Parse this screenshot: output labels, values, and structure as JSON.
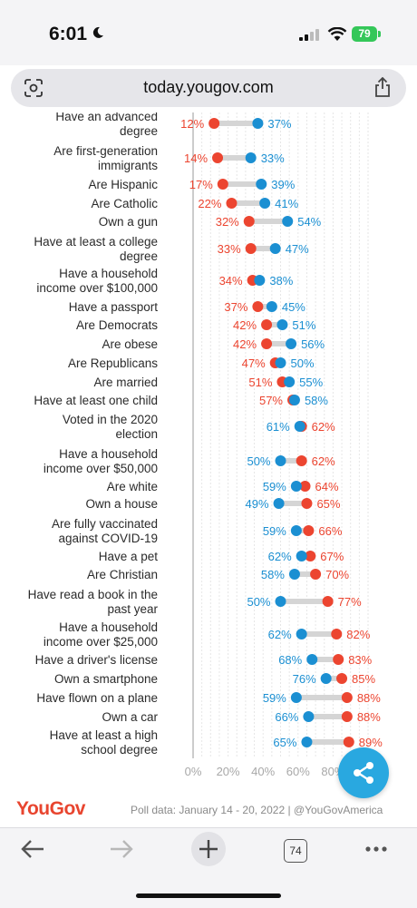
{
  "status": {
    "time": "6:01",
    "battery": "79"
  },
  "browser": {
    "url": "today.yougov.com",
    "tab_count": "74"
  },
  "chart_data": {
    "type": "dumbbell",
    "xlim": [
      0,
      100
    ],
    "xticks": [
      "0%",
      "20%",
      "40%",
      "60%",
      "80%"
    ],
    "xtick_values": [
      0,
      20,
      40,
      60,
      80
    ],
    "grid": true,
    "colors": {
      "red": "#ec4530",
      "blue": "#1b8fd2",
      "connector": "#d5d5d5"
    },
    "rows": [
      {
        "label": [
          "Have an advanced",
          "degree"
        ],
        "red": 12,
        "blue": 37
      },
      {
        "label": [
          "Are first-generation",
          "immigrants"
        ],
        "red": 14,
        "blue": 33
      },
      {
        "label": [
          "Are Hispanic"
        ],
        "red": 17,
        "blue": 39
      },
      {
        "label": [
          "Are Catholic"
        ],
        "red": 22,
        "blue": 41
      },
      {
        "label": [
          "Own a gun"
        ],
        "red": 32,
        "blue": 54
      },
      {
        "label": [
          "Have at least a college",
          "degree"
        ],
        "red": 33,
        "blue": 47
      },
      {
        "label": [
          "Have a household",
          "income over $100,000"
        ],
        "red": 34,
        "blue": 38
      },
      {
        "label": [
          "Have a passport"
        ],
        "red": 37,
        "blue": 45
      },
      {
        "label": [
          "Are Democrats"
        ],
        "red": 42,
        "blue": 51
      },
      {
        "label": [
          "Are obese"
        ],
        "red": 42,
        "blue": 56
      },
      {
        "label": [
          "Are Republicans"
        ],
        "red": 47,
        "blue": 50
      },
      {
        "label": [
          "Are married"
        ],
        "red": 51,
        "blue": 55
      },
      {
        "label": [
          "Have at least one child"
        ],
        "red": 57,
        "blue": 58
      },
      {
        "label": [
          "Voted in the 2020",
          "election"
        ],
        "red": 62,
        "blue": 61
      },
      {
        "label": [
          "Have a household",
          "income over $50,000"
        ],
        "red": 62,
        "blue": 50
      },
      {
        "label": [
          "Are white"
        ],
        "red": 64,
        "blue": 59
      },
      {
        "label": [
          "Own a house"
        ],
        "red": 65,
        "blue": 49
      },
      {
        "label": [
          "Are fully vaccinated",
          "against COVID-19"
        ],
        "red": 66,
        "blue": 59
      },
      {
        "label": [
          "Have a pet"
        ],
        "red": 67,
        "blue": 62
      },
      {
        "label": [
          "Are Christian"
        ],
        "red": 70,
        "blue": 58
      },
      {
        "label": [
          "Have read a book in the",
          "past year"
        ],
        "red": 77,
        "blue": 50
      },
      {
        "label": [
          "Have a household",
          "income over $25,000"
        ],
        "red": 82,
        "blue": 62
      },
      {
        "label": [
          "Have a driver's license"
        ],
        "red": 83,
        "blue": 68
      },
      {
        "label": [
          "Own a smartphone"
        ],
        "red": 85,
        "blue": 76
      },
      {
        "label": [
          "Have flown on a plane"
        ],
        "red": 88,
        "blue": 59
      },
      {
        "label": [
          "Own a car"
        ],
        "red": 88,
        "blue": 66
      },
      {
        "label": [
          "Have at least a high",
          "school degree"
        ],
        "red": 89,
        "blue": 65
      }
    ]
  },
  "footer": {
    "brand": "YouGov",
    "source": "Poll data: January 14 - 20, 2022 | @YouGovAmerica"
  }
}
